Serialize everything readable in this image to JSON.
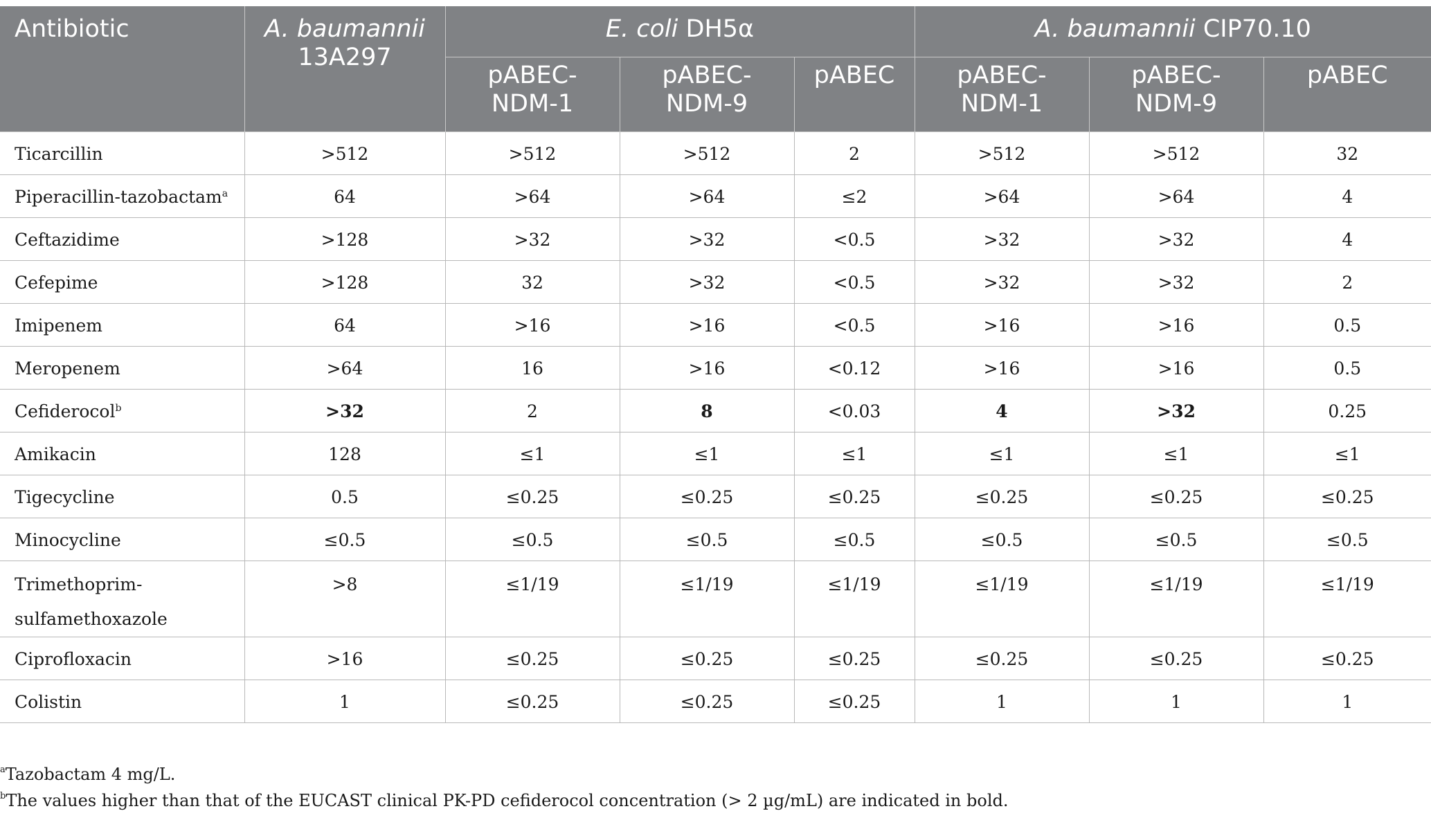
{
  "header": {
    "antibiotic": "Antibiotic",
    "col1": {
      "species": "A. baumannii",
      "strain": "13A297"
    },
    "group2": {
      "species": "E. coli",
      "strain": "DH5α"
    },
    "group3": {
      "species": "A. baumannii",
      "strain": "CIP70.10"
    },
    "sub": [
      "pABEC-NDM-1",
      "pABEC-NDM-9",
      "pABEC",
      "pABEC-NDM-1",
      "pABEC-NDM-9",
      "pABEC"
    ]
  },
  "rows": [
    {
      "name": "Ticarcillin",
      "sup": "",
      "values": [
        ">512",
        ">512",
        ">512",
        "2",
        ">512",
        ">512",
        "32"
      ],
      "bold": []
    },
    {
      "name": "Piperacillin-tazobactam",
      "sup": "a",
      "values": [
        "64",
        ">64",
        ">64",
        "≤2",
        ">64",
        ">64",
        "4"
      ],
      "bold": []
    },
    {
      "name": "Ceftazidime",
      "sup": "",
      "values": [
        ">128",
        ">32",
        ">32",
        "<0.5",
        ">32",
        ">32",
        "4"
      ],
      "bold": []
    },
    {
      "name": "Cefepime",
      "sup": "",
      "values": [
        ">128",
        "32",
        ">32",
        "<0.5",
        ">32",
        ">32",
        "2"
      ],
      "bold": []
    },
    {
      "name": "Imipenem",
      "sup": "",
      "values": [
        "64",
        ">16",
        ">16",
        "<0.5",
        ">16",
        ">16",
        "0.5"
      ],
      "bold": []
    },
    {
      "name": "Meropenem",
      "sup": "",
      "values": [
        ">64",
        "16",
        ">16",
        "<0.12",
        ">16",
        ">16",
        "0.5"
      ],
      "bold": []
    },
    {
      "name": "Cefiderocol",
      "sup": "b",
      "values": [
        ">32",
        "2",
        "8",
        "<0.03",
        "4",
        ">32",
        "0.25"
      ],
      "bold": [
        0,
        2,
        4,
        5
      ]
    },
    {
      "name": "Amikacin",
      "sup": "",
      "values": [
        "128",
        "≤1",
        "≤1",
        "≤1",
        "≤1",
        "≤1",
        "≤1"
      ],
      "bold": []
    },
    {
      "name": "Tigecycline",
      "sup": "",
      "values": [
        "0.5",
        "≤0.25",
        "≤0.25",
        "≤0.25",
        "≤0.25",
        "≤0.25",
        "≤0.25"
      ],
      "bold": []
    },
    {
      "name": "Minocycline",
      "sup": "",
      "values": [
        "≤0.5",
        "≤0.5",
        "≤0.5",
        "≤0.5",
        "≤0.5",
        "≤0.5",
        "≤0.5"
      ],
      "bold": []
    },
    {
      "name": "Trimethoprim-sulfamethoxazole",
      "name_lines": [
        "Trimethoprim-",
        "sulfamethoxazole"
      ],
      "sup": "",
      "values": [
        ">8",
        "≤1/19",
        "≤1/19",
        "≤1/19",
        "≤1/19",
        "≤1/19",
        "≤1/19"
      ],
      "bold": []
    },
    {
      "name": "Ciprofloxacin",
      "sup": "",
      "values": [
        ">16",
        "≤0.25",
        "≤0.25",
        "≤0.25",
        "≤0.25",
        "≤0.25",
        "≤0.25"
      ],
      "bold": []
    },
    {
      "name": "Colistin",
      "sup": "",
      "values": [
        "1",
        "≤0.25",
        "≤0.25",
        "≤0.25",
        "1",
        "1",
        "1"
      ],
      "bold": []
    }
  ],
  "footnotes": [
    {
      "mark": "a",
      "text": "Tazobactam 4 mg/L."
    },
    {
      "mark": "b",
      "text": "The values higher than that of the EUCAST clinical PK-PD cefiderocol concentration (> 2 µg/mL) are indicated in bold."
    }
  ]
}
